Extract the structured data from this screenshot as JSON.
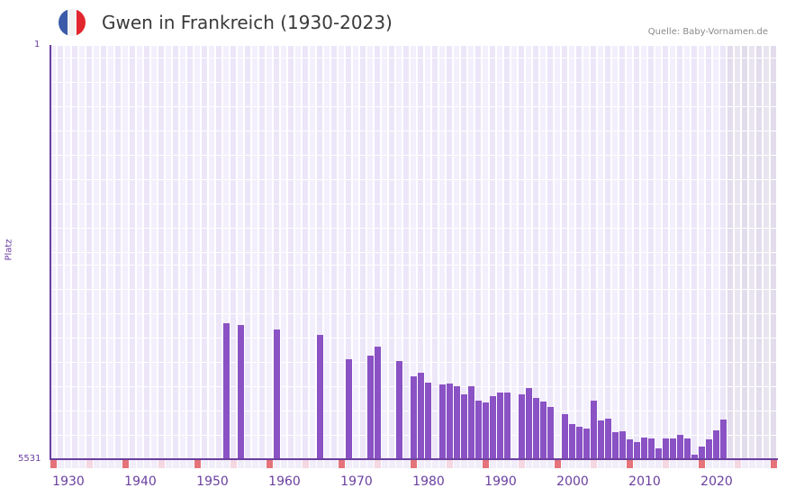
{
  "header": {
    "title": "Gwen in Frankreich (1930-2023)",
    "source": "Quelle: Baby-Vornamen.de",
    "flag_colors": [
      "#3b5ba9",
      "#f2f2f2",
      "#e3262d"
    ]
  },
  "axes": {
    "y_top_label": "1",
    "y_bottom_label": "5531",
    "y_title": "Platz"
  },
  "colors": {
    "bar": "#8a52c4",
    "axis": "#6b3fa0",
    "grid_a": "#f3effc",
    "grid_b": "#ece6f8",
    "future_a": "#e9e5f0",
    "future_b": "#e2dcec",
    "marker_decade": "#e5737a",
    "marker_half": "#f4d7e1",
    "marker_other": "#f1edf9"
  },
  "chart_data": {
    "type": "bar",
    "title": "Gwen in Frankreich (1930-2023)",
    "xlabel": "",
    "ylabel": "Platz",
    "ylim": [
      5531,
      1
    ],
    "y_inverted": true,
    "x_range": [
      1928,
      2028
    ],
    "x_ticks": [
      "1930",
      "1940",
      "1950",
      "1960",
      "1970",
      "1980",
      "1990",
      "2000",
      "2010",
      "2020"
    ],
    "shaded_from_year": 2022,
    "grid": true,
    "legend": null,
    "x": [
      1952,
      1954,
      1959,
      1965,
      1969,
      1972,
      1973,
      1976,
      1978,
      1979,
      1980,
      1982,
      1983,
      1984,
      1985,
      1986,
      1987,
      1988,
      1989,
      1990,
      1991,
      1993,
      1994,
      1995,
      1996,
      1997,
      1999,
      2000,
      2001,
      2002,
      2003,
      2004,
      2005,
      2006,
      2007,
      2008,
      2009,
      2010,
      2011,
      2012,
      2013,
      2014,
      2015,
      2016,
      2017,
      2018,
      2019,
      2020,
      2021
    ],
    "values": [
      3716,
      3740,
      3800,
      3872,
      4197,
      4148,
      4028,
      4221,
      4425,
      4377,
      4509,
      4533,
      4521,
      4557,
      4665,
      4557,
      4750,
      4774,
      4689,
      4641,
      4641,
      4665,
      4581,
      4713,
      4762,
      4834,
      4930,
      5062,
      5098,
      5122,
      4750,
      5014,
      4990,
      5170,
      5158,
      5267,
      5303,
      5243,
      5255,
      5387,
      5255,
      5255,
      5206,
      5255,
      5471,
      5363,
      5267,
      5146,
      5002
    ]
  }
}
